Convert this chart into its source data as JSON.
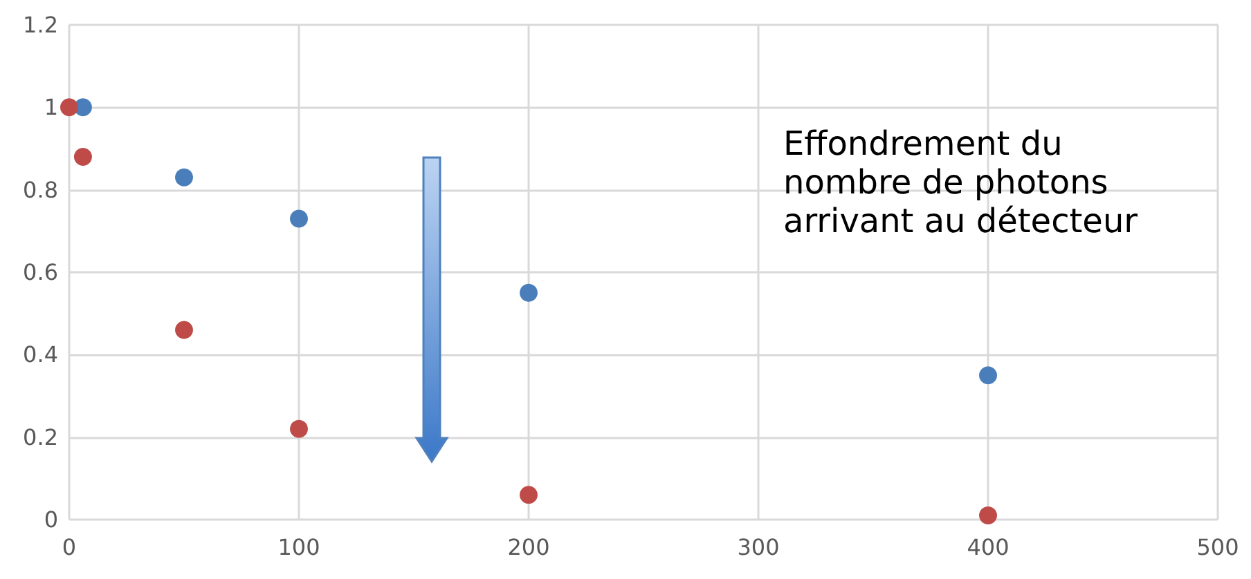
{
  "chart_data": {
    "type": "scatter",
    "series": [
      {
        "color": "#4a7ebb",
        "x": [
          6,
          50,
          100,
          200,
          400
        ],
        "values": [
          1,
          0.83,
          0.73,
          0.55,
          0.35
        ]
      },
      {
        "color": "#be4b48",
        "x": [
          0,
          6,
          50,
          100,
          200,
          400
        ],
        "values": [
          1,
          0.88,
          0.46,
          0.22,
          0.06,
          0.01
        ]
      }
    ],
    "xlim": [
      0,
      500
    ],
    "xticks": [
      0,
      100,
      200,
      300,
      400,
      500
    ],
    "ylim": [
      0,
      1.2
    ],
    "yticks": [
      0,
      0.2,
      0.4,
      0.6,
      0.8,
      1,
      1.2
    ],
    "grid": true,
    "marker": "circle",
    "annotations": [
      "Effondrement du nombre de photons arrivant au détecteur"
    ]
  }
}
